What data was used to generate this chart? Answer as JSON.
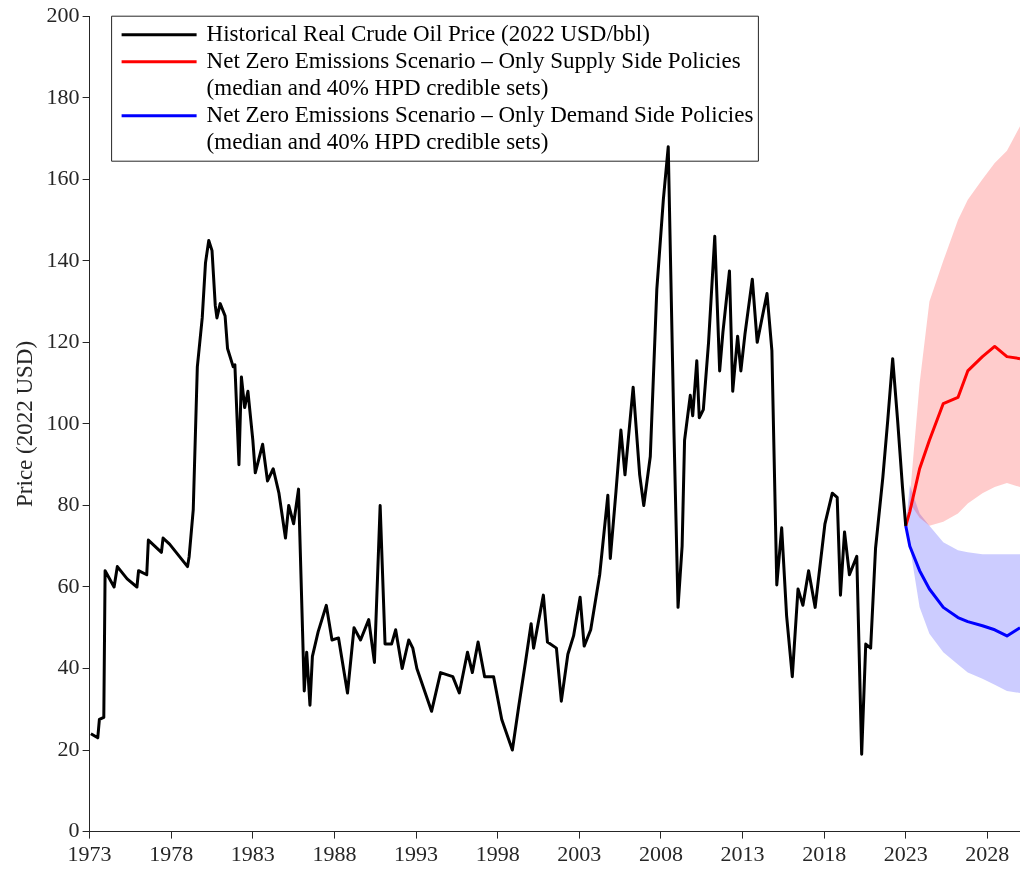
{
  "chart_data": {
    "type": "line",
    "ylabel": "Price (2022 USD)",
    "xlim": [
      1973,
      2030
    ],
    "xticks": [
      1973,
      1978,
      1983,
      1988,
      1993,
      1998,
      2003,
      2008,
      2013,
      2018,
      2023,
      2028
    ],
    "ylim": [
      0,
      200
    ],
    "yticks": [
      0,
      20,
      40,
      60,
      80,
      100,
      120,
      140,
      160,
      180,
      200
    ],
    "legend": "top left",
    "series": [
      {
        "name": "Historical Real Crude Oil Price (2022 USD/bbl)",
        "color": "#000000",
        "x": [
          1973.08,
          1973.5,
          1973.6,
          1973.87,
          1973.95,
          1974.5,
          1974.7,
          1975.3,
          1975.9,
          1976.0,
          1976.5,
          1976.6,
          1977.4,
          1977.5,
          1977.9,
          1979.0,
          1979.1,
          1979.35,
          1979.6,
          1979.9,
          1980.1,
          1980.3,
          1980.5,
          1980.7,
          1980.8,
          1981.0,
          1981.3,
          1981.45,
          1981.8,
          1981.9,
          1982.15,
          1982.3,
          1982.5,
          1982.7,
          1983.0,
          1983.15,
          1983.6,
          1983.9,
          1984.25,
          1984.6,
          1985.0,
          1985.2,
          1985.5,
          1985.8,
          1986.15,
          1986.3,
          1986.5,
          1986.65,
          1987.0,
          1987.5,
          1987.85,
          1988.25,
          1988.8,
          1989.2,
          1989.6,
          1990.1,
          1990.45,
          1990.8,
          1991.1,
          1991.5,
          1991.75,
          1992.15,
          1992.55,
          1992.8,
          1993.05,
          1993.95,
          1994.5,
          1995.25,
          1995.65,
          1996.15,
          1996.45,
          1996.8,
          1997.2,
          1997.75,
          1998.25,
          1998.9,
          1999.3,
          1999.7,
          2000.05,
          2000.2,
          2000.8,
          2001.05,
          2001.6,
          2001.9,
          2002.3,
          2002.65,
          2003.05,
          2003.3,
          2003.7,
          2004.25,
          2004.75,
          2004.9,
          2005.25,
          2005.55,
          2005.8,
          2006.3,
          2006.7,
          2006.95,
          2007.35,
          2007.75,
          2008.15,
          2008.45,
          2008.8,
          2009.05,
          2009.3,
          2009.45,
          2009.8,
          2009.95,
          2010.2,
          2010.35,
          2010.6,
          2010.92,
          2011.3,
          2011.6,
          2011.8,
          2012.2,
          2012.4,
          2012.7,
          2012.9,
          2013.15,
          2013.6,
          2013.9,
          2014.5,
          2014.8,
          2015.1,
          2015.4,
          2015.7,
          2016.05,
          2016.4,
          2016.7,
          2017.05,
          2017.45,
          2018.05,
          2018.5,
          2018.8,
          2019.0,
          2019.25,
          2019.55,
          2020.0,
          2020.3,
          2020.55,
          2020.85,
          2021.15,
          2021.6,
          2021.9,
          2022.2,
          2022.5,
          2022.8,
          2023.0
        ],
        "values": [
          24,
          23,
          27.5,
          28,
          64,
          60,
          65,
          62,
          60,
          64,
          63,
          71.5,
          68.5,
          72,
          70.5,
          65,
          67.5,
          79,
          114,
          126,
          139.5,
          145,
          142.5,
          129,
          126,
          129.5,
          126.5,
          118.5,
          114,
          114.5,
          90,
          111.5,
          104,
          108,
          96,
          88,
          95,
          86,
          89,
          83,
          72,
          80,
          75.5,
          84,
          34.5,
          44,
          31,
          43,
          49,
          55.5,
          47,
          47.5,
          34,
          50,
          47,
          52,
          41.5,
          80,
          46,
          46,
          49.5,
          40,
          47,
          45,
          40,
          29.5,
          39,
          38,
          34,
          44,
          39,
          46.5,
          38,
          38,
          27.5,
          20,
          31,
          41.5,
          51,
          45,
          58,
          46.5,
          45,
          32,
          43.5,
          48,
          57.5,
          45.5,
          49.5,
          63,
          82.5,
          67,
          83.5,
          98.5,
          87.5,
          109,
          87.5,
          80,
          92,
          133,
          155,
          168,
          98,
          55,
          70,
          96,
          107,
          102,
          115.5,
          101.5,
          103.5,
          120,
          146,
          113,
          122.5,
          137.5,
          108,
          121.5,
          113,
          122,
          135.5,
          120,
          132,
          118,
          60.5,
          74.5,
          53,
          38,
          59.5,
          55.5,
          64,
          55,
          75.5,
          83,
          82,
          58,
          73.5,
          63,
          67.5,
          19,
          46,
          45,
          69.5,
          87,
          101,
          116,
          101,
          84.5,
          75
        ]
      },
      {
        "name": "Net Zero Emissions Scenario – Only Supply Side Policies\n(median and 40% HPD credible sets)",
        "color": "#ff0000",
        "x": [
          2023,
          2023.25,
          2023.85,
          2024.45,
          2025.3,
          2026.2,
          2026.8,
          2027.7,
          2028.45,
          2029.2,
          2030
        ],
        "values": [
          75,
          78.5,
          89,
          96,
          105,
          106.5,
          113,
          116.5,
          119,
          116.5,
          116
        ],
        "lower": [
          75,
          80.5,
          77,
          75,
          76,
          78,
          80.5,
          83,
          84.5,
          85.5,
          84.5
        ],
        "upper": [
          75,
          82,
          110,
          130,
          140,
          150,
          155,
          160,
          164,
          167,
          173
        ]
      },
      {
        "name": "Net Zero Emissions Scenario – Only Demand Side Policies\n(median and 40% HPD credible sets)",
        "color": "#0000ff",
        "x": [
          2023,
          2023.25,
          2023.85,
          2024.45,
          2025.3,
          2026.2,
          2026.8,
          2027.7,
          2028.45,
          2029.2,
          2030
        ],
        "values": [
          75,
          70,
          64,
          59.5,
          55,
          52.5,
          51.5,
          50.5,
          49.5,
          48,
          50
        ],
        "lower": [
          75,
          70,
          55,
          48.5,
          44,
          41,
          39,
          37.5,
          36,
          34.5,
          34
        ],
        "upper": [
          75,
          85,
          78,
          75,
          71,
          69,
          68.5,
          68,
          68,
          68,
          68
        ]
      }
    ]
  }
}
